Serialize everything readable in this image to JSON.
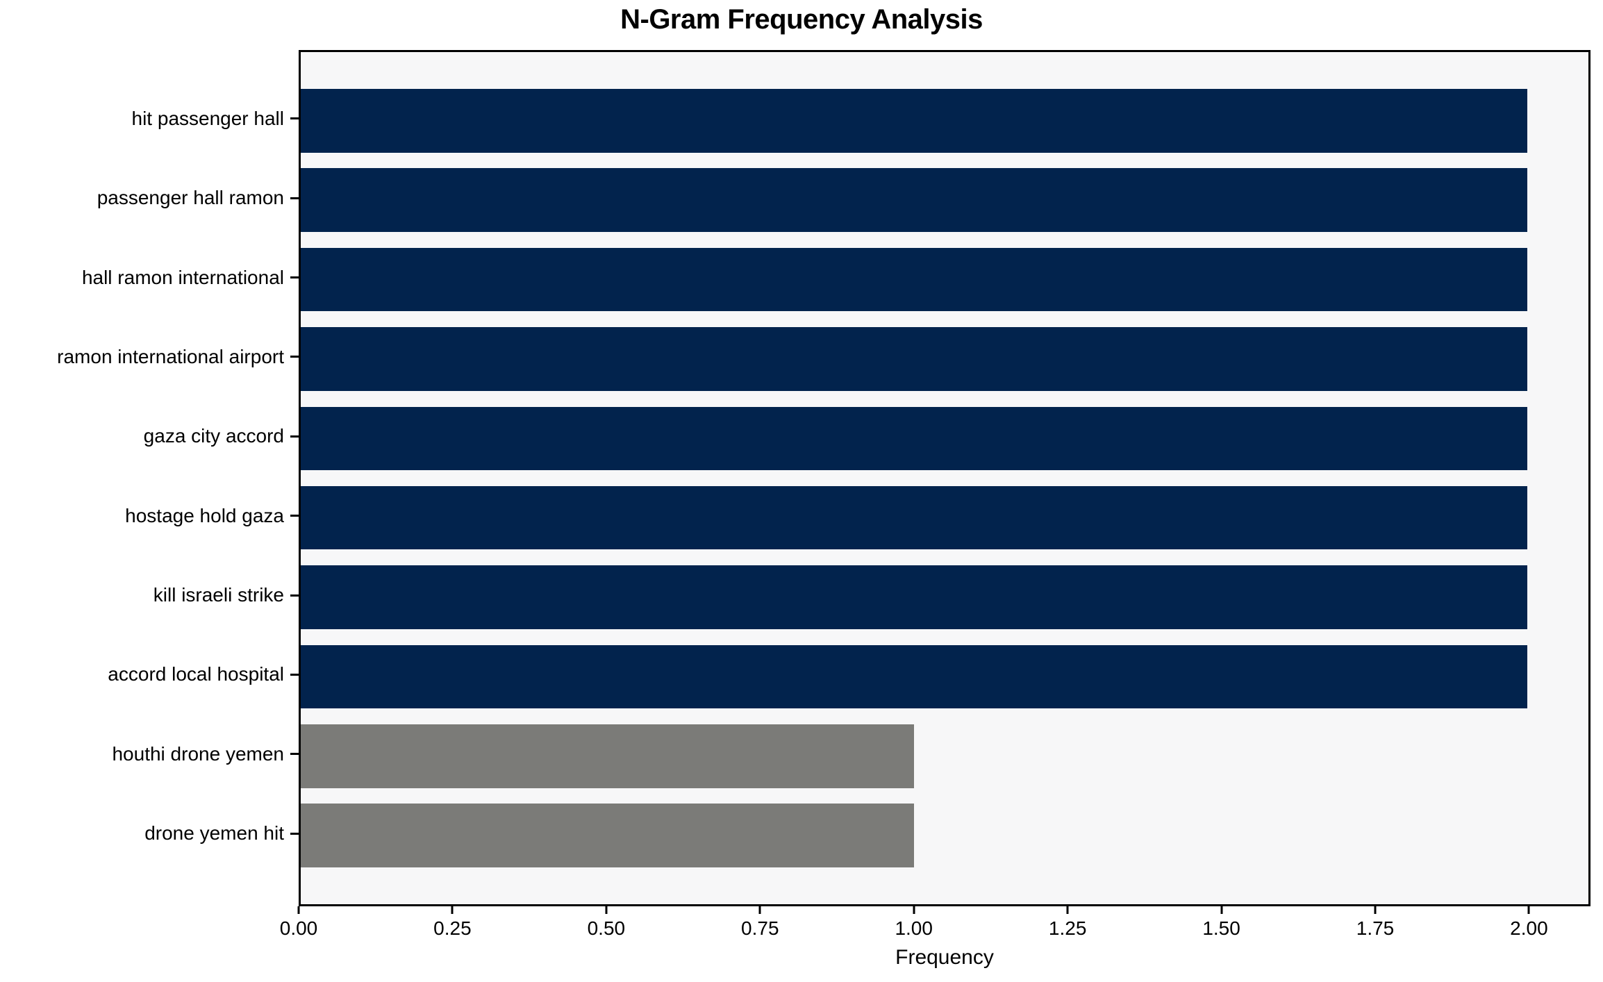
{
  "chart_data": {
    "type": "bar",
    "orientation": "horizontal",
    "title": "N-Gram Frequency Analysis",
    "xlabel": "Frequency",
    "ylabel": "",
    "categories": [
      "hit passenger hall",
      "passenger hall ramon",
      "hall ramon international",
      "ramon international airport",
      "gaza city accord",
      "hostage hold gaza",
      "kill israeli strike",
      "accord local hospital",
      "houthi drone yemen",
      "drone yemen hit"
    ],
    "values": [
      2,
      2,
      2,
      2,
      2,
      2,
      2,
      2,
      1,
      1
    ],
    "bar_colors": [
      "#02234d",
      "#02234d",
      "#02234d",
      "#02234d",
      "#02234d",
      "#02234d",
      "#02234d",
      "#02234d",
      "#7b7b78",
      "#7b7b78"
    ],
    "xlim": [
      0,
      2.1
    ],
    "xtick_values": [
      0,
      0.25,
      0.5,
      0.75,
      1.0,
      1.25,
      1.5,
      1.75,
      2.0
    ],
    "xtick_labels": [
      "0.00",
      "0.25",
      "0.50",
      "0.75",
      "1.00",
      "1.25",
      "1.50",
      "1.75",
      "2.00"
    ],
    "grid": false,
    "legend": null,
    "plot_background": "#f7f7f8",
    "figure_background": "#ffffff",
    "colors": {
      "high_frequency_bar": "#02234d",
      "low_frequency_bar": "#7b7b78",
      "axis": "#000000"
    }
  }
}
